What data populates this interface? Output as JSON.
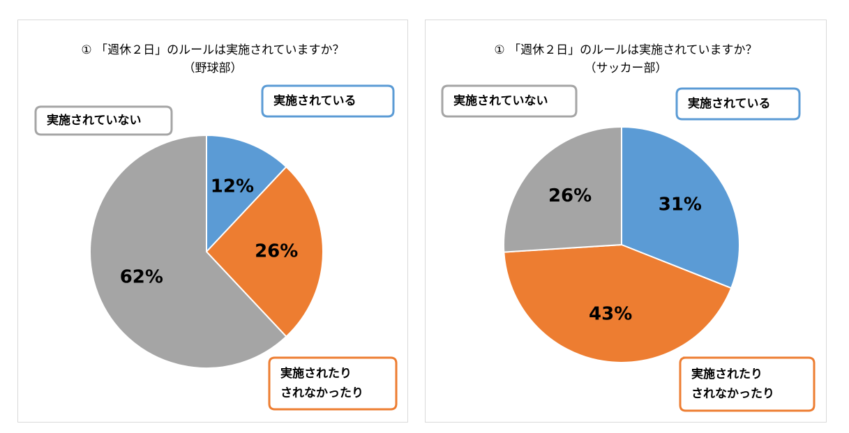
{
  "charts": [
    {
      "title": "① 「週休２日」のルールは実施されていますか？",
      "subtitle": "（野球部）"
    },
    {
      "title": "① 「週休２日」のルールは実施されていますか？",
      "subtitle": "（サッカー部）"
    }
  ],
  "colors": {
    "implemented": "#5b9bd5",
    "sometimes": "#ed7d31",
    "not": "#a5a5a5"
  },
  "chart_data": [
    {
      "type": "pie",
      "title": "① 「週休２日」のルールは実施されていますか？",
      "subtitle": "（野球部）",
      "categories": [
        "実施されている",
        "実施されたりされなかったり",
        "実施されていない"
      ],
      "values": [
        12,
        26,
        62
      ],
      "value_labels": [
        "12%",
        "26%",
        "62%"
      ],
      "callout_lines": [
        [
          "実施されている"
        ],
        [
          "実施されたり",
          "されなかったり"
        ],
        [
          "実施されていない"
        ]
      ]
    },
    {
      "type": "pie",
      "title": "① 「週休２日」のルールは実施されていますか？",
      "subtitle": "（サッカー部）",
      "categories": [
        "実施されている",
        "実施されたりされなかったり",
        "実施されていない"
      ],
      "values": [
        31,
        43,
        26
      ],
      "value_labels": [
        "31%",
        "43%",
        "26%"
      ],
      "callout_lines": [
        [
          "実施されている"
        ],
        [
          "実施されたり",
          "されなかったり"
        ],
        [
          "実施されていない"
        ]
      ]
    }
  ]
}
